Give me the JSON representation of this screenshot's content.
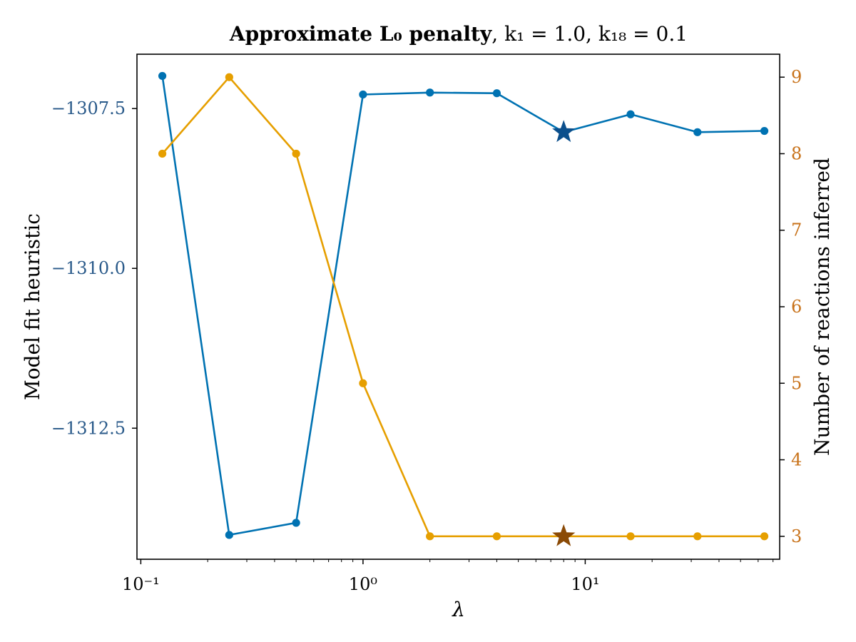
{
  "chart_data": {
    "type": "line",
    "title_main": "Approximate L₀ penalty",
    "title_params": ", k₁ = 1.0, k₁₈ = 0.1",
    "xlabel": "λ",
    "ylabel_left": "Model fit heuristic",
    "ylabel_right": "Number of reactions inferred",
    "x_scale": "log10",
    "xlim": [
      0.0961,
      75.0
    ],
    "x": [
      0.125,
      0.25,
      0.5,
      1.0,
      2.0,
      4.0,
      8.0,
      16.0,
      32.0,
      64.0
    ],
    "x_ticks": [
      {
        "value": 0.1,
        "label": "10⁻¹"
      },
      {
        "value": 1,
        "label": "10⁰"
      },
      {
        "value": 10,
        "label": "10¹"
      }
    ],
    "series": [
      {
        "name": "Model fit heuristic",
        "axis": "left",
        "color": "#0072b2",
        "values": [
          -1306.99,
          -1314.17,
          -1313.98,
          -1307.28,
          -1307.25,
          -1307.26,
          -1307.87,
          -1307.59,
          -1307.87,
          -1307.85
        ]
      },
      {
        "name": "Number of reactions inferred",
        "axis": "right",
        "color": "#e69f00",
        "values": [
          8,
          9,
          8,
          5,
          3,
          3,
          3,
          3,
          3,
          3
        ]
      }
    ],
    "y_left": {
      "lim": [
        -1314.55,
        -1306.65
      ],
      "ticks": [
        -1307.5,
        -1310.0,
        -1312.5
      ],
      "tick_labels": [
        "−1307.5",
        "−1310.0",
        "−1312.5"
      ],
      "color": "#2a5a8a"
    },
    "y_right": {
      "lim": [
        2.7,
        9.3
      ],
      "ticks": [
        3,
        4,
        5,
        6,
        7,
        8,
        9
      ],
      "tick_labels": [
        "3",
        "4",
        "5",
        "6",
        "7",
        "8",
        "9"
      ],
      "color": "#c8721a"
    },
    "highlight": {
      "x": 8.0,
      "left_value": -1307.87,
      "right_value": 3,
      "left_color": "#0b4f8c",
      "right_color": "#8a4a06",
      "marker": "star"
    }
  }
}
